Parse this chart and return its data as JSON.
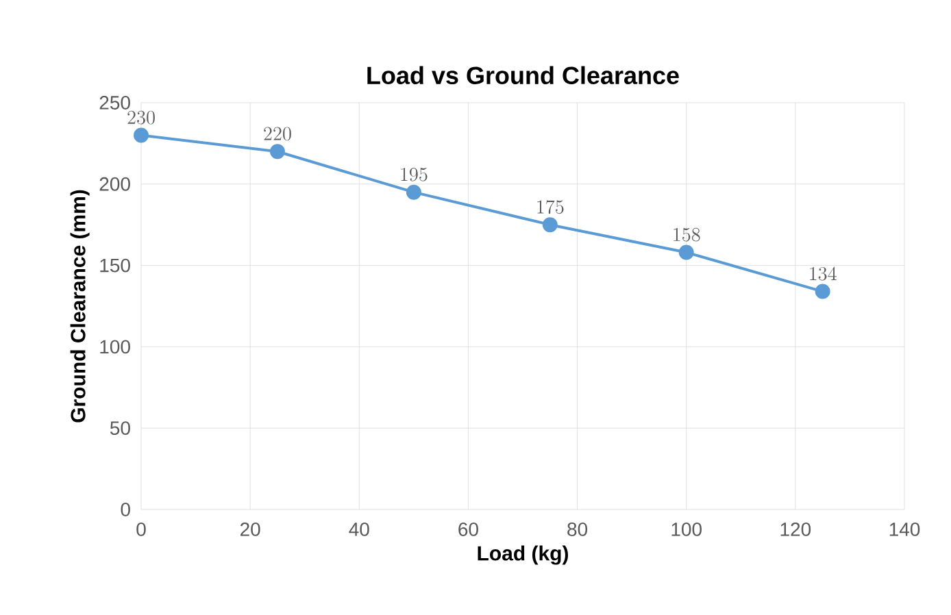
{
  "chart_data": {
    "type": "line",
    "title": "Load vs Ground Clearance",
    "xlabel": "Load (kg)",
    "ylabel": "Ground Clearance (mm)",
    "x": [
      0,
      25,
      50,
      75,
      100,
      125
    ],
    "series": [
      {
        "color": "#5b9bd5",
        "values": [
          230,
          220,
          195,
          175,
          158,
          134
        ]
      }
    ],
    "xlim": [
      0,
      140
    ],
    "xticks": [
      0,
      20,
      40,
      60,
      80,
      100,
      120,
      140
    ],
    "ylim": [
      0,
      250
    ],
    "yticks": [
      0,
      50,
      100,
      150,
      200,
      250
    ],
    "grid": true,
    "marker": "circle",
    "line_style": "solid",
    "data_labels": true
  }
}
